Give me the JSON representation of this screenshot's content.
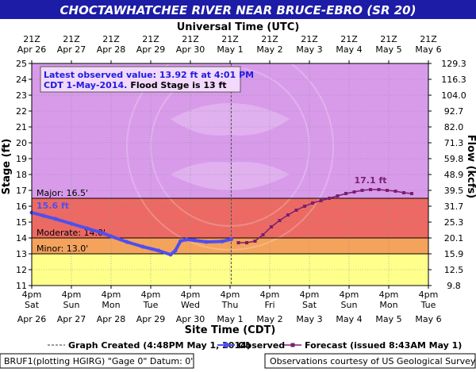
{
  "banner": {
    "title": "CHOCTAWHATCHEE RIVER NEAR BRUCE-EBRO (SR 20)"
  },
  "colors": {
    "banner_bg": "#1c1ca6",
    "zone_major": "#d89bea",
    "zone_moderate": "#ec6a63",
    "zone_minor": "#f4a35c",
    "zone_action": "#ffff8c",
    "observed": "#4f4ff0",
    "forecast": "#7a1f6e"
  },
  "legend": {
    "graph_created": "Graph Created (4:48PM May 1, 2014)",
    "observed": "Observed",
    "forecast": "Forecast (issued 8:43AM May 1)"
  },
  "footer": {
    "left": "BRUF1(plotting HGIRG) \"Gage 0\" Datum: 0'",
    "right": "Observations courtesy of US Geological Survey"
  },
  "chart_data": {
    "type": "line",
    "top_axis": {
      "title": "Universal Time (UTC)",
      "ticks": [
        {
          "l1": "21Z",
          "l2": "Apr 26"
        },
        {
          "l1": "21Z",
          "l2": "Apr 27"
        },
        {
          "l1": "21Z",
          "l2": "Apr 28"
        },
        {
          "l1": "21Z",
          "l2": "Apr 29"
        },
        {
          "l1": "21Z",
          "l2": "Apr 30"
        },
        {
          "l1": "21Z",
          "l2": "May 1"
        },
        {
          "l1": "21Z",
          "l2": "May 2"
        },
        {
          "l1": "21Z",
          "l2": "May 3"
        },
        {
          "l1": "21Z",
          "l2": "May 4"
        },
        {
          "l1": "21Z",
          "l2": "May 5"
        },
        {
          "l1": "21Z",
          "l2": "May 6"
        }
      ]
    },
    "bottom_axis": {
      "title": "Site Time (CDT)",
      "ticks": [
        {
          "l1": "4pm",
          "l2": "Sat",
          "l3": "Apr 26"
        },
        {
          "l1": "4pm",
          "l2": "Sun",
          "l3": "Apr 27"
        },
        {
          "l1": "4pm",
          "l2": "Mon",
          "l3": "Apr 28"
        },
        {
          "l1": "4pm",
          "l2": "Tue",
          "l3": "Apr 29"
        },
        {
          "l1": "4pm",
          "l2": "Wed",
          "l3": "Apr 30"
        },
        {
          "l1": "4pm",
          "l2": "Thu",
          "l3": "May 1"
        },
        {
          "l1": "4pm",
          "l2": "Fri",
          "l3": "May 2"
        },
        {
          "l1": "4pm",
          "l2": "Sat",
          "l3": "May 3"
        },
        {
          "l1": "4pm",
          "l2": "Sun",
          "l3": "May 4"
        },
        {
          "l1": "4pm",
          "l2": "Mon",
          "l3": "May 5"
        },
        {
          "l1": "4pm",
          "l2": "Tue",
          "l3": "May 6"
        }
      ]
    },
    "y_left": {
      "label": "Stage (ft)",
      "range": [
        11,
        25
      ],
      "ticks": [
        "11",
        "12",
        "13",
        "14",
        "15",
        "16",
        "17",
        "18",
        "19",
        "20",
        "21",
        "22",
        "23",
        "24",
        "25"
      ]
    },
    "y_right": {
      "label": "Flow (kcfs)",
      "ticks": [
        "9.8",
        "12.5",
        "15.9",
        "20.1",
        "25.3",
        "31.7",
        "39.5",
        "48.9",
        "59.8",
        "71.3",
        "82.0",
        "92.7",
        "104.0",
        "116.3",
        "129.3"
      ]
    },
    "x_range_days": [
      0,
      10
    ],
    "now_day": 5.03,
    "stages": [
      {
        "name": "major",
        "label": "Major: 16.5'",
        "value": 16.5
      },
      {
        "name": "moderate",
        "label": "Moderate: 14.0'",
        "value": 14.0
      },
      {
        "name": "minor",
        "label": "Minor: 13.0'",
        "value": 13.0
      }
    ],
    "annotation": {
      "line1": "Latest observed value: 13.92 ft at 4:01 PM",
      "line2a": "CDT 1-May-2014.",
      "line2b": "Flood Stage is 13 ft"
    },
    "observed_peak_label": "15.6 ft",
    "forecast_peak_label": "17.1 ft",
    "observed": {
      "name": "Observed",
      "x": [
        0.0,
        0.3,
        0.6,
        1.0,
        1.4,
        1.8,
        2.0,
        2.4,
        2.8,
        3.2,
        3.5,
        3.62,
        3.75,
        3.9,
        4.1,
        4.4,
        4.8,
        5.03
      ],
      "y": [
        15.6,
        15.4,
        15.2,
        14.9,
        14.6,
        14.3,
        14.1,
        13.75,
        13.45,
        13.2,
        12.95,
        13.2,
        13.8,
        13.9,
        13.85,
        13.75,
        13.78,
        13.92
      ]
    },
    "forecast": {
      "name": "Forecast",
      "x": [
        5.21,
        5.42,
        5.63,
        5.83,
        6.04,
        6.25,
        6.46,
        6.67,
        6.88,
        7.08,
        7.29,
        7.5,
        7.71,
        7.92,
        8.13,
        8.33,
        8.54,
        8.75,
        8.96,
        9.17,
        9.38,
        9.58
      ],
      "y": [
        13.7,
        13.7,
        13.8,
        14.2,
        14.7,
        15.1,
        15.45,
        15.75,
        16.0,
        16.2,
        16.35,
        16.5,
        16.65,
        16.8,
        16.9,
        17.0,
        17.05,
        17.05,
        17.0,
        16.95,
        16.85,
        16.8
      ]
    }
  }
}
